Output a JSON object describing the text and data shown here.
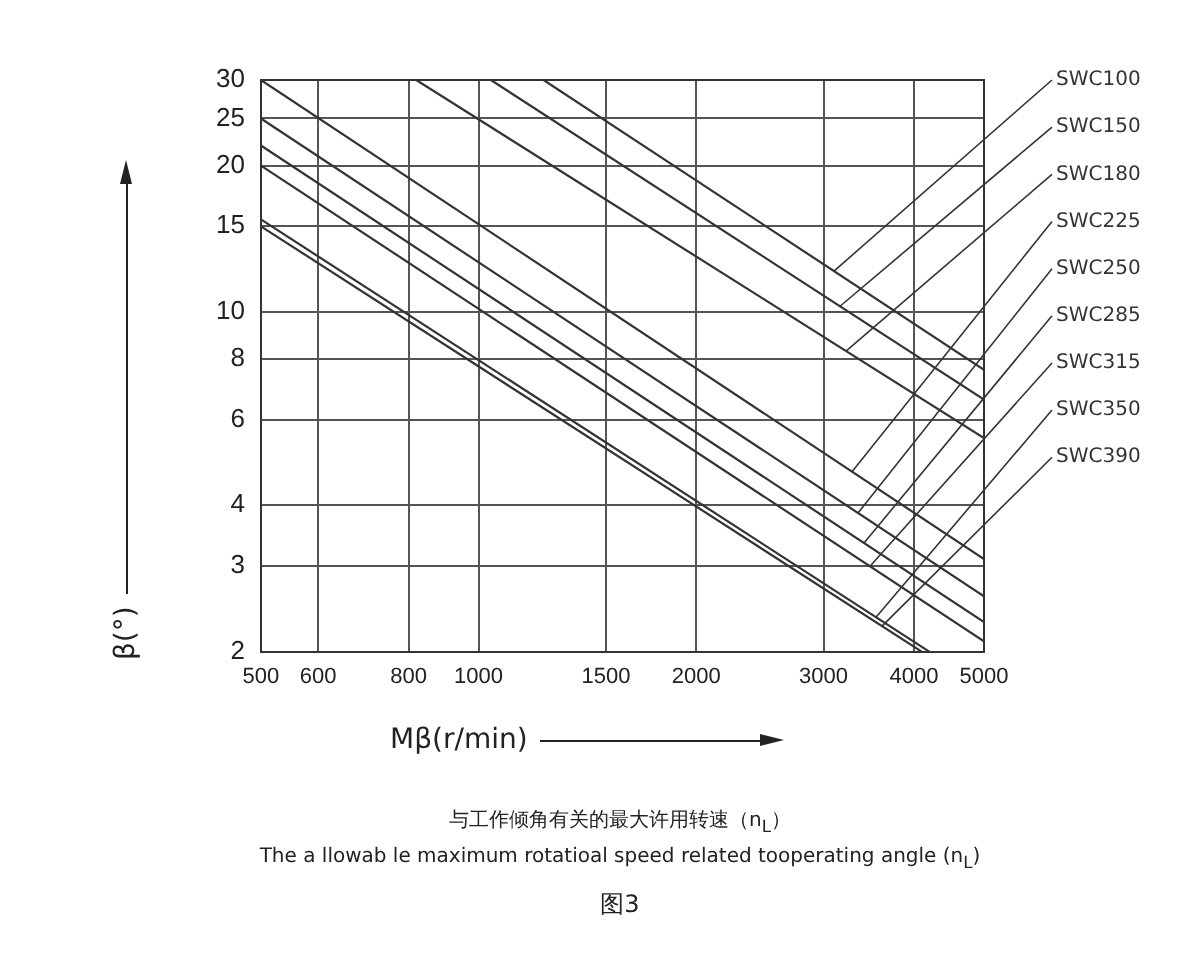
{
  "chart_data": {
    "type": "line",
    "xlabel": "Mβ(r/min)",
    "ylabel": "β(°)",
    "log": "xy",
    "grid": true,
    "legend": false,
    "marker": "none",
    "xlim": [
      500,
      5000
    ],
    "xticks": [
      500,
      600,
      800,
      1000,
      1500,
      2000,
      3000,
      4000,
      5000
    ],
    "ylim": [
      2,
      30
    ],
    "yticks": [
      2,
      3,
      4,
      6,
      8,
      10,
      15,
      20,
      25,
      30
    ],
    "series": [
      {
        "name": "SWC100",
        "color": "#333333",
        "x": [
          1230,
          5000
        ],
        "values": [
          30,
          7.6
        ]
      },
      {
        "name": "SWC150",
        "color": "#333333",
        "x": [
          1040,
          5000
        ],
        "values": [
          30,
          6.6
        ]
      },
      {
        "name": "SWC180",
        "color": "#333333",
        "x": [
          820,
          5000
        ],
        "values": [
          30,
          5.5
        ]
      },
      {
        "name": "SWC225",
        "color": "#333333",
        "x": [
          500,
          5000
        ],
        "values": [
          30,
          3.1
        ]
      },
      {
        "name": "SWC250",
        "color": "#333333",
        "x": [
          500,
          5000
        ],
        "values": [
          25,
          2.6
        ]
      },
      {
        "name": "SWC285",
        "color": "#333333",
        "x": [
          500,
          5000
        ],
        "values": [
          22,
          2.3
        ]
      },
      {
        "name": "SWC315",
        "color": "#333333",
        "x": [
          500,
          5000
        ],
        "values": [
          20,
          2.1
        ]
      },
      {
        "name": "SWC350",
        "color": "#333333",
        "x": [
          500,
          4200
        ],
        "values": [
          15.5,
          2
        ]
      },
      {
        "name": "SWC390",
        "color": "#333333",
        "x": [
          500,
          4100
        ],
        "values": [
          15,
          2
        ]
      }
    ],
    "annotations": [
      "与工作倾角有关的最大许用转速（n$_{L}$）",
      "The a llowab le maximum rotatioal speed related tooperating angle (n$_{L}$)",
      "图3"
    ]
  }
}
